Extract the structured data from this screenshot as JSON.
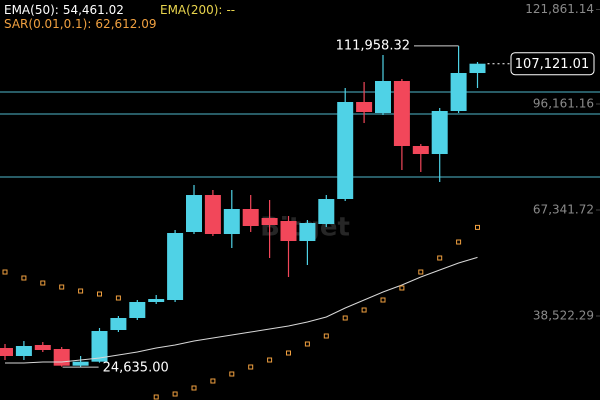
{
  "chart_data": {
    "type": "candlestick",
    "watermark": "Bitget",
    "up_color": "#4fd2e6",
    "down_color": "#f2475a",
    "open": [
      29818,
      27643,
      30634,
      29546,
      25011,
      26099,
      34712,
      37975,
      42325,
      42869,
      61358,
      71418,
      60814,
      67612,
      65165,
      64349,
      58911,
      63534,
      70331,
      96705,
      93714,
      102415,
      84742,
      82566,
      94258,
      104590
    ],
    "high": [
      30906,
      31718,
      31446,
      30090,
      27643,
      35255,
      38519,
      42869,
      44229,
      61902,
      74137,
      72778,
      72778,
      71418,
      70059,
      65709,
      64621,
      71418,
      100512,
      102143,
      109485,
      102959,
      85286,
      95074,
      111958.32,
      107581
    ],
    "low": [
      26555,
      26555,
      28730,
      24740,
      24635,
      25827,
      34168,
      37431,
      41781,
      42325,
      60814,
      60270,
      57008,
      61358,
      54289,
      49123,
      52385,
      62718,
      69787,
      91000,
      93170,
      78216,
      77672,
      74953,
      93714,
      100512
    ],
    "close": [
      27643,
      30362,
      29274,
      25011,
      26099,
      34439,
      37975,
      42325,
      43141,
      61086,
      71418,
      60814,
      67612,
      62990,
      63262,
      58911,
      63806,
      70331,
      96705,
      93986,
      102415,
      84742,
      82566,
      94258,
      104590,
      107121.01
    ],
    "indicators": [
      {
        "name": "EMA(50):",
        "value_label": "54,461.02",
        "color": "#ffffff",
        "kind": "line",
        "line_color": "#d8d8d8",
        "values": [
          25742,
          25742,
          26014,
          26014,
          26555,
          27099,
          27914,
          28730,
          29818,
          30634,
          31718,
          32536,
          33352,
          34168,
          34983,
          35799,
          36887,
          38247,
          40692,
          42869,
          45044,
          46948,
          49123,
          51026,
          52930,
          54461.02
        ]
      },
      {
        "name": "EMA(200):",
        "value_label": "--",
        "color": "#e8d44d"
      },
      {
        "name": "SAR(0.01,0.1):",
        "value_label": "62,612.09",
        "color": "#f0a040",
        "kind": "dots",
        "line_color": "#f0a040",
        "values": [
          50481,
          48850,
          47490,
          46402,
          45315,
          44499,
          43411,
          null,
          16495,
          17310,
          18942,
          20845,
          22748,
          24652,
          26555,
          28458,
          30906,
          33081,
          37975,
          40150,
          42869,
          46132,
          50481,
          54289,
          58638,
          62612.09
        ]
      }
    ],
    "levels": [
      99424,
      93442,
      76310
    ],
    "level_color": "#4fb8cc",
    "annotations": [
      {
        "label": "111,958.32",
        "value": 111958.32
      },
      {
        "label": "24,635.00",
        "value": 24635
      }
    ],
    "last_price": {
      "label": "107,121.01",
      "value": 107121.01
    },
    "ylim": [
      15680,
      124440
    ],
    "yticks": [
      {
        "value": 38522.29,
        "label": "38,522.29"
      },
      {
        "value": 67341.72,
        "label": "67,341.72"
      },
      {
        "value": 96161.16,
        "label": "96,161.16"
      },
      {
        "value": 121861.14,
        "label": "121,861.14"
      }
    ]
  }
}
